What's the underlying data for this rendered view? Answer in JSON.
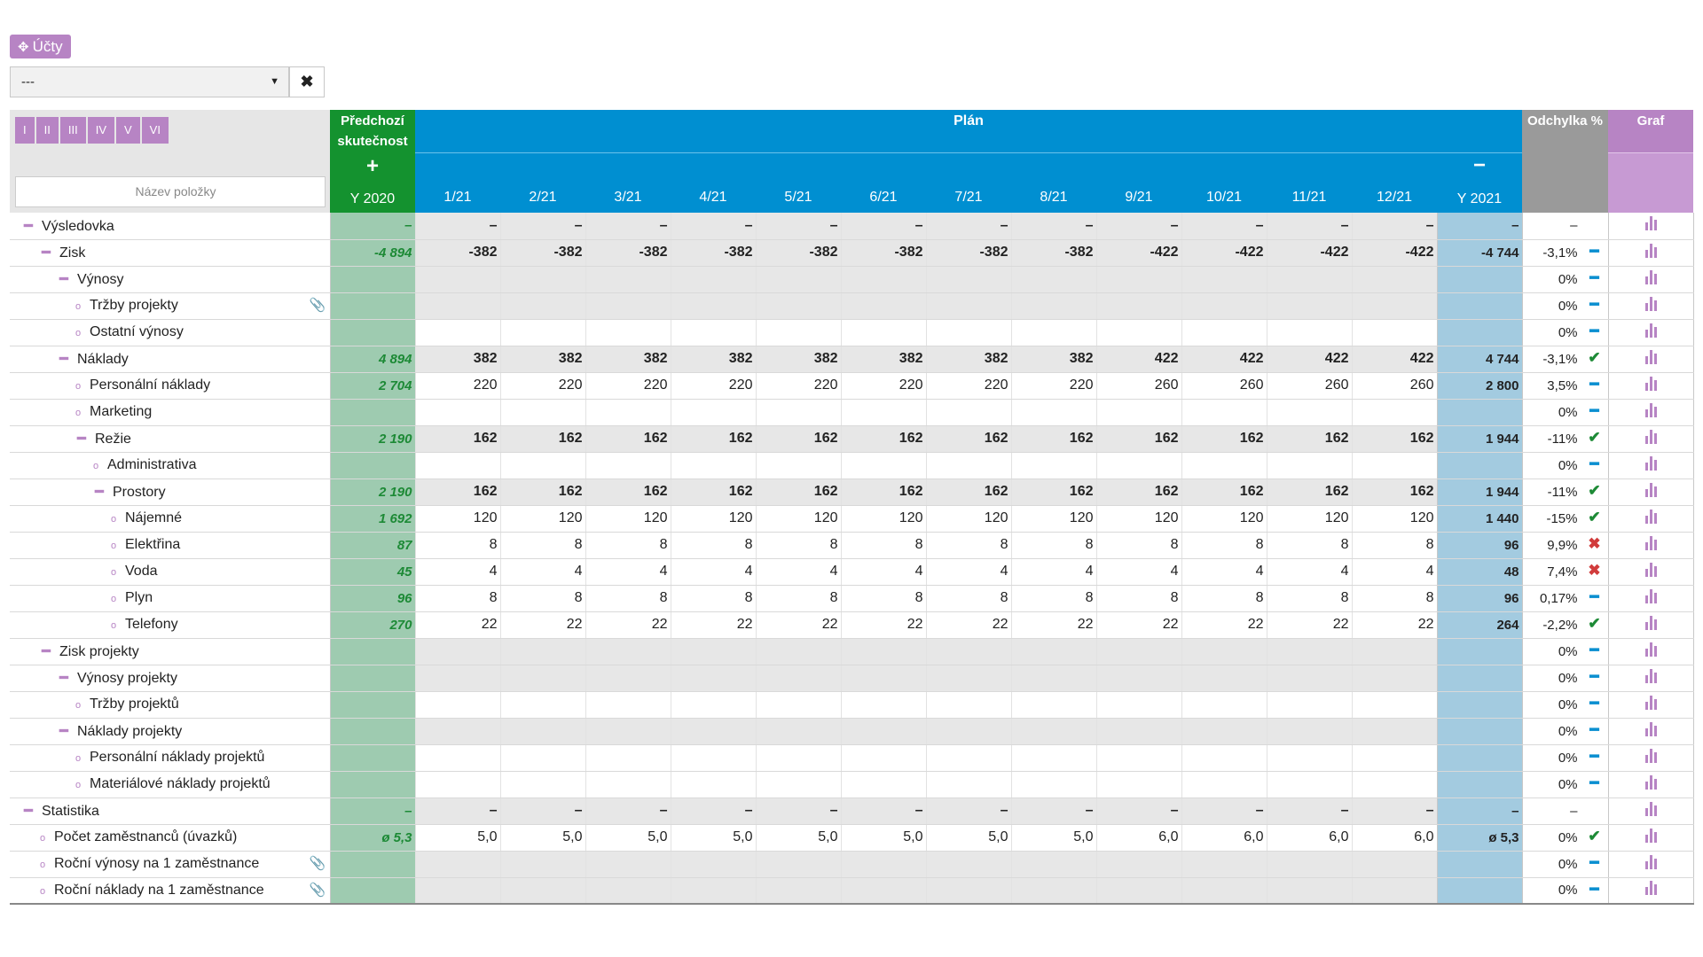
{
  "toolbar": {
    "accounts_label": "Účty",
    "accounts_icon": "move-arrows-icon",
    "select_value": "---",
    "clear_label": "✖"
  },
  "header": {
    "period_buttons": [
      "I",
      "II",
      "III",
      "IV",
      "V",
      "VI"
    ],
    "name_filter_placeholder": "Název položky",
    "prev_title": "Předchozí skutečnost",
    "prev_toggle": "+",
    "prev_year": "Y 2020",
    "plan_title": "Plán",
    "months": [
      "1/21",
      "2/21",
      "3/21",
      "4/21",
      "5/21",
      "6/21",
      "7/21",
      "8/21",
      "9/21",
      "10/21",
      "11/21",
      "12/21"
    ],
    "plan_toggle": "−",
    "plan_year": "Y 2021",
    "deviation_title": "Odchylka %",
    "chart_title": "Graf"
  },
  "rows": [
    {
      "name": "Výsledovka",
      "level": 0,
      "type": "toggle",
      "prev": "–",
      "months": [
        "–",
        "–",
        "–",
        "–",
        "–",
        "–",
        "–",
        "–",
        "–",
        "–",
        "–",
        "–"
      ],
      "y21": "–",
      "dev": "–",
      "ind": "",
      "style": "grey bold"
    },
    {
      "name": "Zisk",
      "level": 1,
      "type": "toggle",
      "prev": "-4 894",
      "months": [
        "-382",
        "-382",
        "-382",
        "-382",
        "-382",
        "-382",
        "-382",
        "-382",
        "-422",
        "-422",
        "-422",
        "-422"
      ],
      "y21": "-4 744",
      "dev": "-3,1%",
      "ind": "dash",
      "style": "grey bold"
    },
    {
      "name": "Výnosy",
      "level": 2,
      "type": "toggle",
      "prev": "",
      "months": [
        "",
        "",
        "",
        "",
        "",
        "",
        "",
        "",
        "",
        "",
        "",
        ""
      ],
      "y21": "",
      "dev": "0%",
      "ind": "dash",
      "style": "grey"
    },
    {
      "name": "Tržby projekty",
      "level": 3,
      "type": "bullet",
      "clip": true,
      "prev": "",
      "months": [
        "",
        "",
        "",
        "",
        "",
        "",
        "",
        "",
        "",
        "",
        "",
        ""
      ],
      "y21": "",
      "dev": "0%",
      "ind": "dash",
      "style": "grey"
    },
    {
      "name": "Ostatní výnosy",
      "level": 3,
      "type": "bullet",
      "prev": "",
      "months": [
        "",
        "",
        "",
        "",
        "",
        "",
        "",
        "",
        "",
        "",
        "",
        ""
      ],
      "y21": "",
      "dev": "0%",
      "ind": "dash",
      "style": "white"
    },
    {
      "name": "Náklady",
      "level": 2,
      "type": "toggle",
      "prev": "4 894",
      "months": [
        "382",
        "382",
        "382",
        "382",
        "382",
        "382",
        "382",
        "382",
        "422",
        "422",
        "422",
        "422"
      ],
      "y21": "4 744",
      "dev": "-3,1%",
      "ind": "ok",
      "style": "grey bold"
    },
    {
      "name": "Personální náklady",
      "level": 3,
      "type": "bullet",
      "prev": "2 704",
      "months": [
        "220",
        "220",
        "220",
        "220",
        "220",
        "220",
        "220",
        "220",
        "260",
        "260",
        "260",
        "260"
      ],
      "y21": "2 800",
      "dev": "3,5%",
      "ind": "dash",
      "style": "white"
    },
    {
      "name": "Marketing",
      "level": 3,
      "type": "bullet",
      "prev": "",
      "months": [
        "",
        "",
        "",
        "",
        "",
        "",
        "",
        "",
        "",
        "",
        "",
        ""
      ],
      "y21": "",
      "dev": "0%",
      "ind": "dash",
      "style": "white"
    },
    {
      "name": "Režie",
      "level": 3,
      "type": "toggle",
      "prev": "2 190",
      "months": [
        "162",
        "162",
        "162",
        "162",
        "162",
        "162",
        "162",
        "162",
        "162",
        "162",
        "162",
        "162"
      ],
      "y21": "1 944",
      "dev": "-11%",
      "ind": "ok",
      "style": "grey bold"
    },
    {
      "name": "Administrativa",
      "level": 4,
      "type": "bullet",
      "prev": "",
      "months": [
        "",
        "",
        "",
        "",
        "",
        "",
        "",
        "",
        "",
        "",
        "",
        ""
      ],
      "y21": "",
      "dev": "0%",
      "ind": "dash",
      "style": "white"
    },
    {
      "name": "Prostory",
      "level": 4,
      "type": "toggle",
      "prev": "2 190",
      "months": [
        "162",
        "162",
        "162",
        "162",
        "162",
        "162",
        "162",
        "162",
        "162",
        "162",
        "162",
        "162"
      ],
      "y21": "1 944",
      "dev": "-11%",
      "ind": "ok",
      "style": "grey bold"
    },
    {
      "name": "Nájemné",
      "level": 5,
      "type": "bullet",
      "prev": "1 692",
      "months": [
        "120",
        "120",
        "120",
        "120",
        "120",
        "120",
        "120",
        "120",
        "120",
        "120",
        "120",
        "120"
      ],
      "y21": "1 440",
      "dev": "-15%",
      "ind": "ok",
      "style": "white"
    },
    {
      "name": "Elektřina",
      "level": 5,
      "type": "bullet",
      "prev": "87",
      "months": [
        "8",
        "8",
        "8",
        "8",
        "8",
        "8",
        "8",
        "8",
        "8",
        "8",
        "8",
        "8"
      ],
      "y21": "96",
      "dev": "9,9%",
      "ind": "bad",
      "style": "white"
    },
    {
      "name": "Voda",
      "level": 5,
      "type": "bullet",
      "prev": "45",
      "months": [
        "4",
        "4",
        "4",
        "4",
        "4",
        "4",
        "4",
        "4",
        "4",
        "4",
        "4",
        "4"
      ],
      "y21": "48",
      "dev": "7,4%",
      "ind": "bad",
      "style": "white"
    },
    {
      "name": "Plyn",
      "level": 5,
      "type": "bullet",
      "prev": "96",
      "months": [
        "8",
        "8",
        "8",
        "8",
        "8",
        "8",
        "8",
        "8",
        "8",
        "8",
        "8",
        "8"
      ],
      "y21": "96",
      "dev": "0,17%",
      "ind": "dash",
      "style": "white"
    },
    {
      "name": "Telefony",
      "level": 5,
      "type": "bullet",
      "prev": "270",
      "months": [
        "22",
        "22",
        "22",
        "22",
        "22",
        "22",
        "22",
        "22",
        "22",
        "22",
        "22",
        "22"
      ],
      "y21": "264",
      "dev": "-2,2%",
      "ind": "ok",
      "style": "white"
    },
    {
      "name": "Zisk projekty",
      "level": 1,
      "type": "toggle",
      "prev": "",
      "months": [
        "",
        "",
        "",
        "",
        "",
        "",
        "",
        "",
        "",
        "",
        "",
        ""
      ],
      "y21": "",
      "dev": "0%",
      "ind": "dash",
      "style": "grey"
    },
    {
      "name": "Výnosy projekty",
      "level": 2,
      "type": "toggle",
      "prev": "",
      "months": [
        "",
        "",
        "",
        "",
        "",
        "",
        "",
        "",
        "",
        "",
        "",
        ""
      ],
      "y21": "",
      "dev": "0%",
      "ind": "dash",
      "style": "grey"
    },
    {
      "name": "Tržby projektů",
      "level": 3,
      "type": "bullet",
      "prev": "",
      "months": [
        "",
        "",
        "",
        "",
        "",
        "",
        "",
        "",
        "",
        "",
        "",
        ""
      ],
      "y21": "",
      "dev": "0%",
      "ind": "dash",
      "style": "white"
    },
    {
      "name": "Náklady projekty",
      "level": 2,
      "type": "toggle",
      "prev": "",
      "months": [
        "",
        "",
        "",
        "",
        "",
        "",
        "",
        "",
        "",
        "",
        "",
        ""
      ],
      "y21": "",
      "dev": "0%",
      "ind": "dash",
      "style": "grey"
    },
    {
      "name": "Personální náklady projektů",
      "level": 3,
      "type": "bullet",
      "prev": "",
      "months": [
        "",
        "",
        "",
        "",
        "",
        "",
        "",
        "",
        "",
        "",
        "",
        ""
      ],
      "y21": "",
      "dev": "0%",
      "ind": "dash",
      "style": "white"
    },
    {
      "name": "Materiálové náklady projektů",
      "level": 3,
      "type": "bullet",
      "prev": "",
      "months": [
        "",
        "",
        "",
        "",
        "",
        "",
        "",
        "",
        "",
        "",
        "",
        ""
      ],
      "y21": "",
      "dev": "0%",
      "ind": "dash",
      "style": "white"
    },
    {
      "name": "Statistika",
      "level": 0,
      "type": "toggle",
      "prev": "–",
      "months": [
        "–",
        "–",
        "–",
        "–",
        "–",
        "–",
        "–",
        "–",
        "–",
        "–",
        "–",
        "–"
      ],
      "y21": "–",
      "dev": "–",
      "ind": "",
      "style": "grey bold"
    },
    {
      "name": "Počet zaměstnanců (úvazků)",
      "level": 1,
      "type": "bullet",
      "prev": "ø 5,3",
      "months": [
        "5,0",
        "5,0",
        "5,0",
        "5,0",
        "5,0",
        "5,0",
        "5,0",
        "5,0",
        "6,0",
        "6,0",
        "6,0",
        "6,0"
      ],
      "y21": "ø 5,3",
      "dev": "0%",
      "ind": "ok",
      "style": "white"
    },
    {
      "name": "Roční výnosy na 1 zaměstnance",
      "level": 1,
      "type": "bullet",
      "clip": true,
      "prev": "",
      "months": [
        "",
        "",
        "",
        "",
        "",
        "",
        "",
        "",
        "",
        "",
        "",
        ""
      ],
      "y21": "",
      "dev": "0%",
      "ind": "dash",
      "style": "grey"
    },
    {
      "name": "Roční náklady na 1 zaměstnance",
      "level": 1,
      "type": "bullet",
      "clip": true,
      "prev": "",
      "months": [
        "",
        "",
        "",
        "",
        "",
        "",
        "",
        "",
        "",
        "",
        "",
        ""
      ],
      "y21": "",
      "dev": "0%",
      "ind": "dash",
      "style": "grey"
    }
  ],
  "icons": {
    "toggle": "minus-icon",
    "bullet": "circle-bullet-icon",
    "clip": "paperclip-icon",
    "chart": "bar-chart-icon",
    "ok": "check-icon",
    "bad": "cross-icon",
    "dash": "dash-icon"
  },
  "colors": {
    "accent_purple": "#b784c4",
    "prev_green": "#14922f",
    "plan_blue": "#008fd1",
    "deviation_grey": "#9a9a9a",
    "ok_green": "#1d8a36",
    "bad_red": "#d13c3c"
  }
}
